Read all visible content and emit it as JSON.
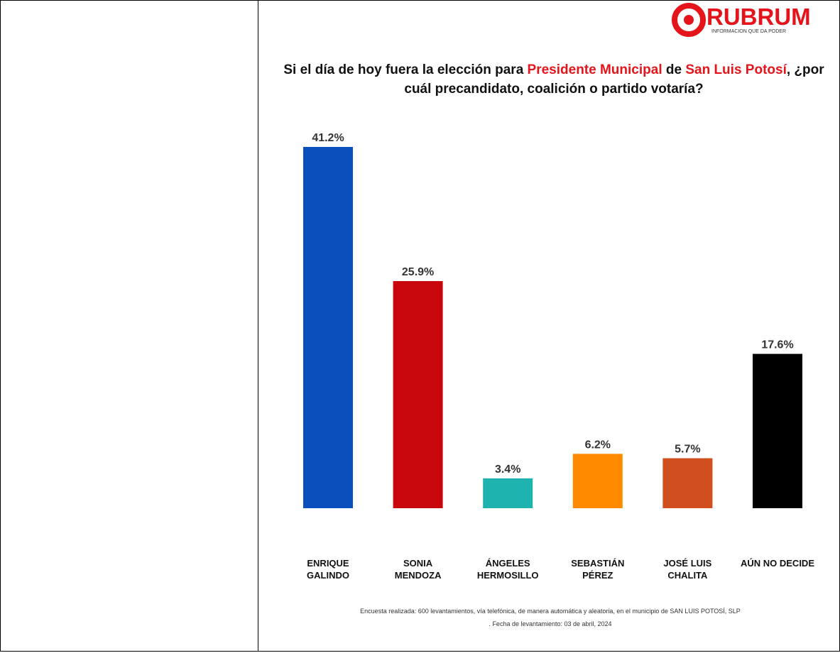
{
  "logo": {
    "name": "RUBRUM",
    "tagline": "INFORMACION QUE DA PODER"
  },
  "chart_data": {
    "type": "bar",
    "title_parts": [
      {
        "text": "Si el día de hoy fuera la elección para ",
        "color": "#111111"
      },
      {
        "text": "Presidente Municipal",
        "color": "#e5141b"
      },
      {
        "text": " de ",
        "color": "#111111"
      },
      {
        "text": "San Luis Potosí",
        "color": "#e5141b"
      },
      {
        "text": ", ¿por cuál precandidato, coalición o partido votaría?",
        "color": "#111111"
      }
    ],
    "categories": [
      "ENRIQUE\nGALINDO",
      "SONIA\nMENDOZA",
      "ÁNGELES\nHERMOSILLO",
      "SEBASTIÁN\nPÉREZ",
      "JOSÉ LUIS\nCHALITA",
      "AÚN NO DECIDE"
    ],
    "values": [
      41.2,
      25.9,
      3.4,
      6.2,
      5.7,
      17.6
    ],
    "value_labels": [
      "41.2%",
      "25.9%",
      "3.4%",
      "6.2%",
      "5.7%",
      "17.6%"
    ],
    "colors": [
      "#0b4fbd",
      "#c8070d",
      "#1fb3b0",
      "#ff8a00",
      "#d14e1e",
      "#000000"
    ],
    "footnote": [
      "Encuesta realizada: 600 levantamientos, vía telefónica, de manera automática y aleatoria, en el municipio de SAN LUIS POTOSÍ, SLP",
      ". Fecha de levantamiento: 03 de abril, 2024"
    ]
  }
}
